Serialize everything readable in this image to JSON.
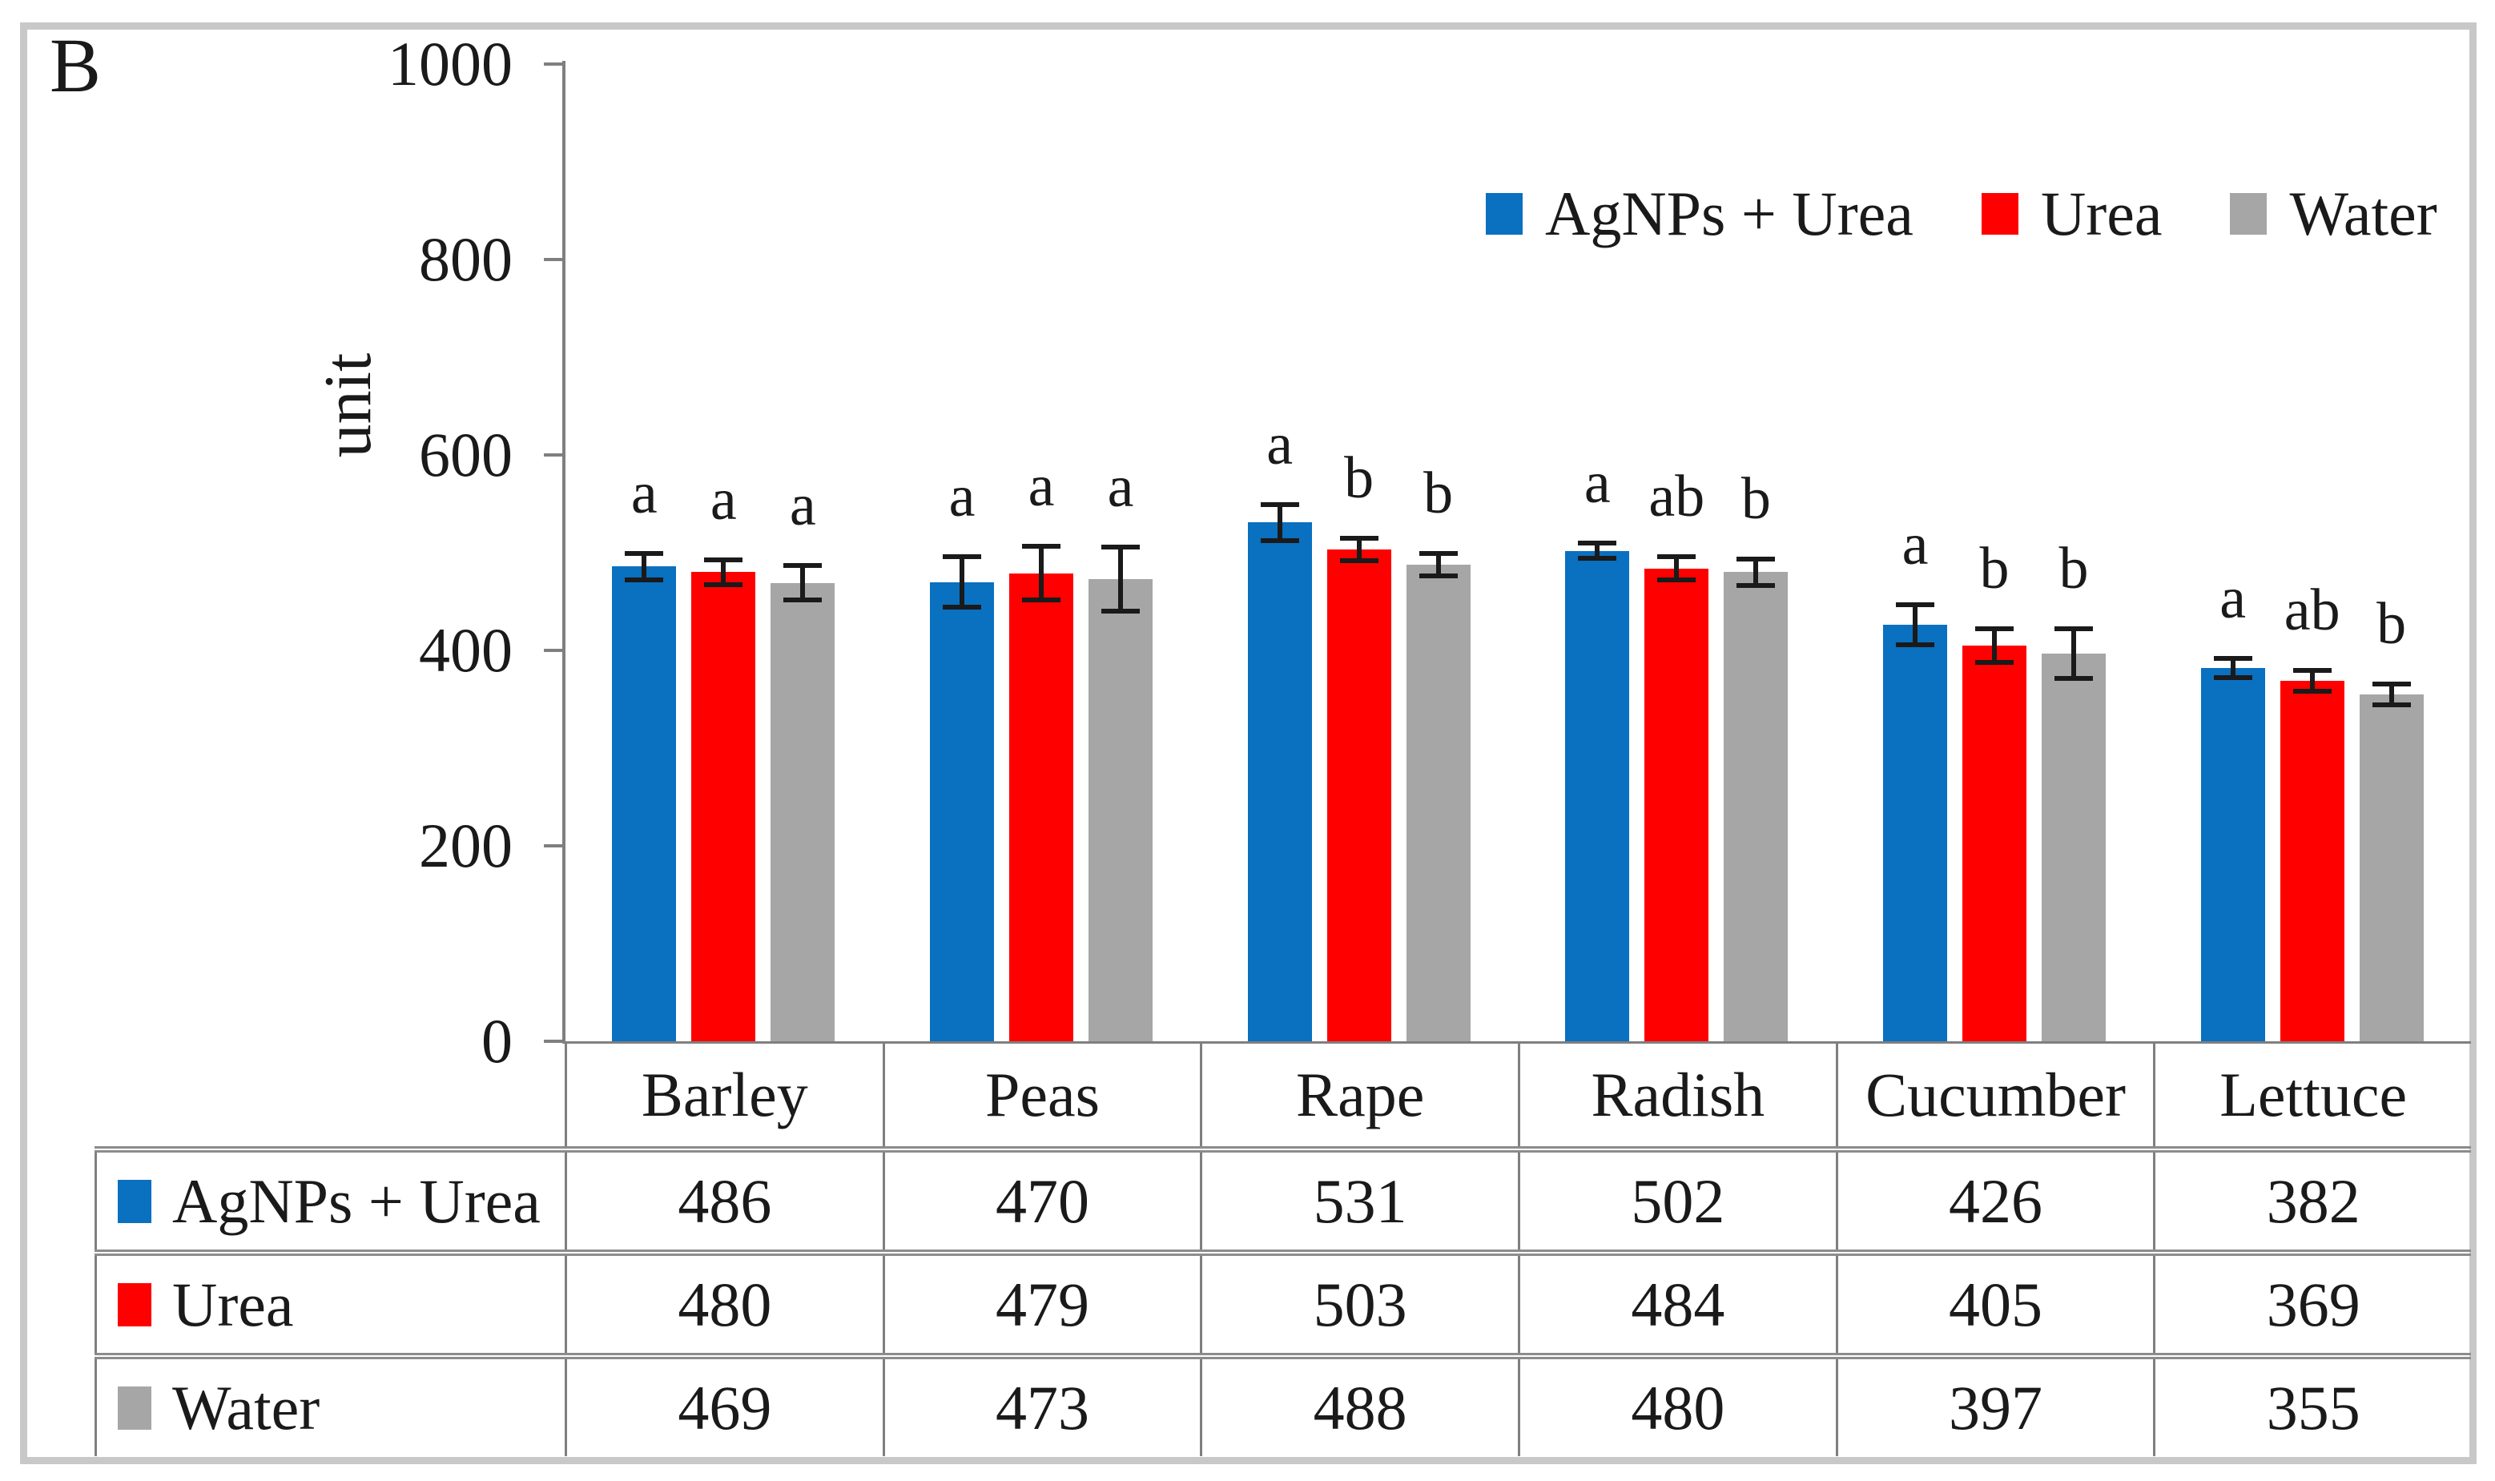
{
  "panel": {
    "label": "B"
  },
  "chart_data": {
    "type": "bar",
    "categories": [
      "Barley",
      "Peas",
      "Rape",
      "Radish",
      "Cucumber",
      "Lettuce"
    ],
    "series": [
      {
        "name": "AgNPs + Urea",
        "color": "#0a70c0",
        "values": [
          486,
          470,
          531,
          502,
          426,
          382
        ],
        "errors": [
          16,
          28,
          21,
          10,
          23,
          12
        ],
        "sig_letters": [
          "a",
          "a",
          "a",
          "a",
          "a",
          "a"
        ]
      },
      {
        "name": "Urea",
        "color": "#ff0000",
        "values": [
          480,
          479,
          503,
          484,
          405,
          369
        ],
        "errors": [
          15,
          30,
          14,
          14,
          20,
          13
        ],
        "sig_letters": [
          "a",
          "a",
          "b",
          "ab",
          "b",
          "ab"
        ]
      },
      {
        "name": "Water",
        "color": "#a6a6a6",
        "values": [
          469,
          473,
          488,
          480,
          397,
          355
        ],
        "errors": [
          20,
          35,
          14,
          16,
          28,
          13
        ],
        "sig_letters": [
          "a",
          "a",
          "b",
          "b",
          "b",
          "b"
        ]
      }
    ],
    "ylabel": "unit",
    "ylim": [
      0,
      1000
    ],
    "yticks": [
      0,
      200,
      400,
      600,
      800,
      1000
    ],
    "grid": false,
    "legend_position": "top-center-inside",
    "data_table_shown": true
  },
  "style_colors": {
    "axis_line": "#7f7f7f",
    "outer_border": "#c8c8c8",
    "text": "#1a1a1a"
  }
}
